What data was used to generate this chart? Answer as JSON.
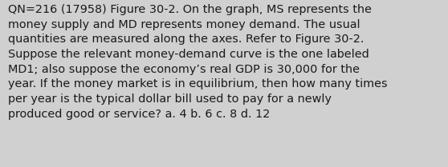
{
  "lines": [
    "QN=216 (17958) Figure 30-2. On the graph, MS represents the",
    "money supply and MD represents money demand. The usual",
    "quantities are measured along the axes. Refer to Figure 30-2.",
    "Suppose the relevant money-demand curve is the one labeled",
    "MD1; also suppose the economy’s real GDP is 30,000 for the",
    "year. If the money market is in equilibrium, then how many times",
    "per year is the typical dollar bill used to pay for a newly",
    "produced good or service? a. 4 b. 6 c. 8 d. 12"
  ],
  "background_color": "#d0d0d0",
  "text_color": "#1a1a1a",
  "font_size": 10.4,
  "fig_width": 5.58,
  "fig_height": 2.09,
  "dpi": 100
}
